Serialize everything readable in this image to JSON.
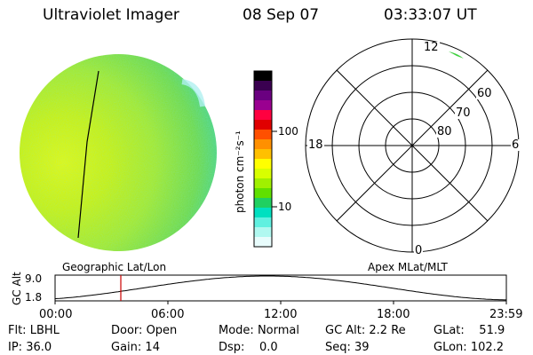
{
  "header": {
    "title": "Ultraviolet Imager",
    "date": "08 Sep 07",
    "time": "03:33:07 UT"
  },
  "colorbar": {
    "unit_label": "photon cm⁻²s⁻¹",
    "ticks": [
      "100",
      "10"
    ],
    "colors": [
      "#000000",
      "#3a0050",
      "#6a0080",
      "#9a0090",
      "#ff0040",
      "#e00000",
      "#ff5000",
      "#ff9000",
      "#ffc000",
      "#ffff00",
      "#d8ff00",
      "#a0f000",
      "#60e000",
      "#20d060",
      "#00e0c0",
      "#60f0e0",
      "#b0f8f0",
      "#e8fcfc"
    ]
  },
  "polar": {
    "mlt_labels": {
      "top": "12",
      "bottom": "0",
      "left": "18",
      "right": "6"
    },
    "lat_labels": [
      "60",
      "70",
      "80"
    ]
  },
  "timeline": {
    "left_label": "Geographic Lat/Lon",
    "right_label": "Apex MLat/MLT",
    "axis_label": "GC Alt",
    "y_ticks": [
      "9.0",
      "1.8"
    ],
    "x_ticks": [
      "00:00",
      "06:00",
      "12:00",
      "18:00",
      "23:59"
    ],
    "marker_color": "#cc0000"
  },
  "status": [
    {
      "label": "Flt:",
      "value": "LBHL"
    },
    {
      "label": "IP:",
      "value": "36.0"
    },
    {
      "label": "Door:",
      "value": "Open"
    },
    {
      "label": "Gain:",
      "value": "14"
    },
    {
      "label": "Mode:",
      "value": "Normal"
    },
    {
      "label": "Dsp:",
      "value": "0.0"
    },
    {
      "label": "GC Alt:",
      "value": "2.2 Re"
    },
    {
      "label": "Seq:",
      "value": "39"
    },
    {
      "label": "GLat:",
      "value": "51.9"
    },
    {
      "label": "GLon:",
      "value": "102.2"
    }
  ]
}
